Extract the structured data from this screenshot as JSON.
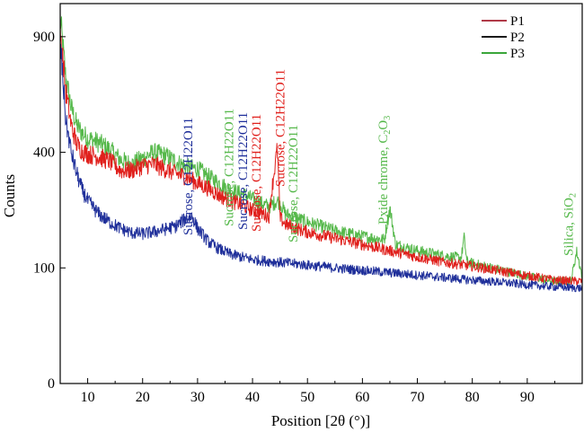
{
  "chart_data": {
    "type": "line",
    "title": "",
    "xlabel": "Position [2θ (°)]",
    "ylabel": "Counts",
    "xlim": [
      5,
      100
    ],
    "ylim_scale": "sqrt",
    "ylim": [
      0,
      1080
    ],
    "x_ticks": [
      10,
      20,
      30,
      40,
      50,
      60,
      70,
      80,
      90
    ],
    "y_ticks": [
      0,
      100,
      400,
      900
    ],
    "grid": false,
    "legend_position": "top-right",
    "legend": [
      {
        "name": "P1",
        "color": "#b03a48"
      },
      {
        "name": "P2",
        "color": "#1a1a1a"
      },
      {
        "name": "P3",
        "color": "#3aa63a"
      }
    ],
    "series": [
      {
        "name": "P3",
        "color": "#55b84a",
        "x": [
          5,
          6,
          7,
          8,
          9,
          10,
          12,
          14,
          16,
          18,
          20,
          22,
          24,
          26,
          28,
          30,
          32,
          34,
          36,
          38,
          40,
          42,
          43,
          44.5,
          45,
          46,
          48,
          50,
          55,
          60,
          64,
          65,
          66,
          70,
          75,
          78,
          78.5,
          79,
          80,
          85,
          90,
          95,
          98,
          99,
          100
        ],
        "y": [
          1000,
          700,
          570,
          500,
          470,
          450,
          435,
          410,
          375,
          360,
          380,
          400,
          390,
          370,
          350,
          345,
          320,
          300,
          280,
          270,
          255,
          240,
          235,
          250,
          245,
          215,
          205,
          195,
          175,
          162,
          155,
          230,
          145,
          132,
          122,
          118,
          160,
          112,
          108,
          97,
          86,
          78,
          80,
          130,
          85
        ]
      },
      {
        "name": "P1",
        "color": "#e0201c",
        "x": [
          5,
          6,
          7,
          8,
          9,
          10,
          12,
          14,
          16,
          18,
          20,
          22,
          24,
          26,
          28,
          30,
          32,
          34,
          36,
          38,
          40,
          42,
          43,
          44.5,
          45,
          46,
          48,
          50,
          55,
          60,
          65,
          70,
          75,
          80,
          85,
          90,
          95,
          100
        ],
        "y": [
          930,
          640,
          500,
          430,
          405,
          395,
          385,
          370,
          340,
          340,
          355,
          360,
          345,
          330,
          320,
          300,
          285,
          265,
          250,
          240,
          225,
          215,
          210,
          410,
          205,
          190,
          180,
          172,
          158,
          145,
          132,
          120,
          110,
          103,
          95,
          87,
          80,
          78
        ]
      },
      {
        "name": "P2",
        "color": "#1f2f9a",
        "x": [
          5,
          6,
          7,
          8,
          9,
          10,
          12,
          14,
          16,
          18,
          20,
          22,
          24,
          26,
          27,
          28,
          29,
          30,
          32,
          34,
          36,
          38,
          40,
          42,
          44,
          46,
          48,
          50,
          55,
          60,
          65,
          70,
          75,
          80,
          85,
          90,
          95,
          100
        ],
        "y": [
          860,
          520,
          400,
          330,
          280,
          250,
          215,
          195,
          180,
          170,
          168,
          172,
          178,
          185,
          195,
          205,
          210,
          180,
          150,
          135,
          125,
          120,
          115,
          113,
          111,
          109,
          107,
          105,
          100,
          96,
          92,
          88,
          84,
          80,
          77,
          73,
          70,
          68
        ]
      }
    ],
    "annotations": [
      {
        "text": "Sucrose, C12H22O11",
        "x": 29,
        "color": "#1f2f9a"
      },
      {
        "text": "Sucrose, C12H22O11",
        "x": 36.5,
        "color": "#55b84a"
      },
      {
        "text": "Sucrose, C12H22O11",
        "x": 39,
        "color": "#1f2f9a"
      },
      {
        "text": "Sucrose, C12H22O11",
        "x": 41.5,
        "color": "#e0201c"
      },
      {
        "text": "Sucrose, C12H22O11",
        "x": 45.8,
        "color": "#e0201c"
      },
      {
        "text": "Sucrose, C12H22O11",
        "x": 48.2,
        "color": "#55b84a"
      },
      {
        "text": "Pxide chrome, C",
        "sub1": "2",
        "text2": "O",
        "sub2": "3",
        "x": 64.5,
        "color": "#55b84a"
      },
      {
        "text": "Silica, SiO",
        "sub1": "2",
        "x": 98.3,
        "color": "#55b84a"
      }
    ]
  }
}
